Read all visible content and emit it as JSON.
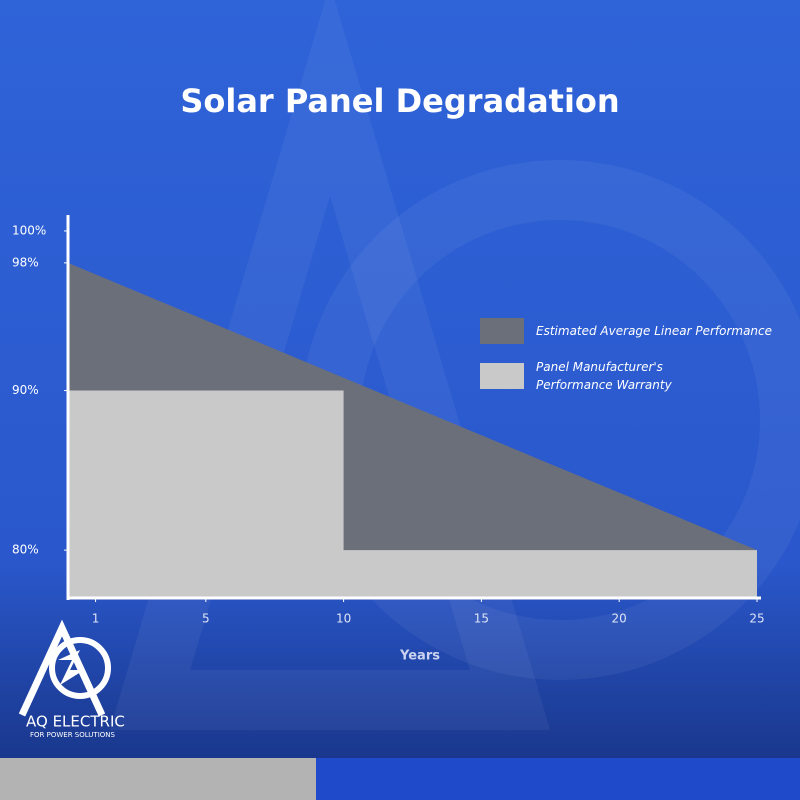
{
  "chart_data": {
    "type": "area",
    "title": "Solar Panel Degradation",
    "xlabel": "Years",
    "xlim": [
      0,
      25
    ],
    "xticks": [
      1,
      5,
      10,
      15,
      20,
      25
    ],
    "ylim": [
      77,
      101
    ],
    "yticks": [
      {
        "value": 100,
        "label": "100%"
      },
      {
        "value": 98,
        "label": "98%"
      },
      {
        "value": 90,
        "label": "90%"
      },
      {
        "value": 80,
        "label": "80%"
      }
    ],
    "series": [
      {
        "name": "Estimated Average Linear Performance",
        "color": "#6b6f7a",
        "x": [
          0,
          25
        ],
        "values": [
          98,
          80
        ]
      },
      {
        "name": "Panel Manufacturer's Performance Warranty",
        "color": "#c9c9c9",
        "x": [
          0,
          10,
          10,
          25
        ],
        "values": [
          90,
          90,
          80,
          80
        ]
      }
    ]
  },
  "logo": {
    "name": "AQ ELECTRIC",
    "tagline": "FOR POWER SOLUTIONS"
  }
}
